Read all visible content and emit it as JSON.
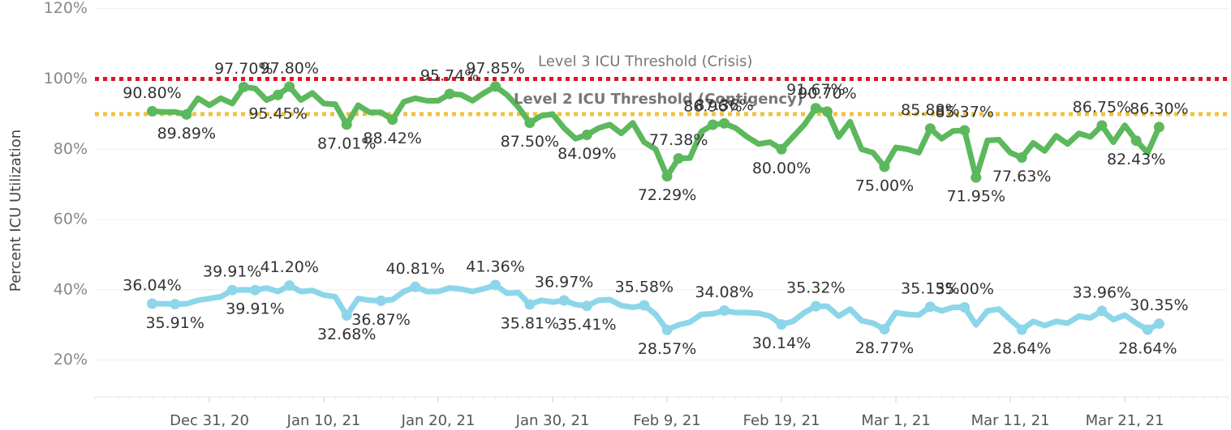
{
  "chart_data": {
    "type": "line",
    "ylabel": "Percent ICU Utilization",
    "x": [
      "2020-12-26",
      "2020-12-27",
      "2020-12-28",
      "2020-12-29",
      "2020-12-30",
      "2020-12-31",
      "2021-01-01",
      "2021-01-02",
      "2021-01-03",
      "2021-01-04",
      "2021-01-05",
      "2021-01-06",
      "2021-01-07",
      "2021-01-08",
      "2021-01-09",
      "2021-01-10",
      "2021-01-11",
      "2021-01-12",
      "2021-01-13",
      "2021-01-14",
      "2021-01-15",
      "2021-01-16",
      "2021-01-17",
      "2021-01-18",
      "2021-01-19",
      "2021-01-20",
      "2021-01-21",
      "2021-01-22",
      "2021-01-23",
      "2021-01-24",
      "2021-01-25",
      "2021-01-26",
      "2021-01-27",
      "2021-01-28",
      "2021-01-29",
      "2021-01-30",
      "2021-01-31",
      "2021-02-01",
      "2021-02-02",
      "2021-02-03",
      "2021-02-04",
      "2021-02-05",
      "2021-02-06",
      "2021-02-07",
      "2021-02-08",
      "2021-02-09",
      "2021-02-10",
      "2021-02-11",
      "2021-02-12",
      "2021-02-13",
      "2021-02-14",
      "2021-02-15",
      "2021-02-16",
      "2021-02-17",
      "2021-02-18",
      "2021-02-19",
      "2021-02-20",
      "2021-02-21",
      "2021-02-22",
      "2021-02-23",
      "2021-02-24",
      "2021-02-25",
      "2021-02-26",
      "2021-02-27",
      "2021-02-28",
      "2021-03-01",
      "2021-03-02",
      "2021-03-03",
      "2021-03-04",
      "2021-03-05",
      "2021-03-06",
      "2021-03-07",
      "2021-03-08",
      "2021-03-09",
      "2021-03-10",
      "2021-03-11",
      "2021-03-12",
      "2021-03-13",
      "2021-03-14",
      "2021-03-15",
      "2021-03-16",
      "2021-03-17",
      "2021-03-18",
      "2021-03-19",
      "2021-03-20",
      "2021-03-21",
      "2021-03-22",
      "2021-03-23",
      "2021-03-24"
    ],
    "series": [
      {
        "color": "#5cb85c",
        "values": [
          90.8,
          90.6,
          90.6,
          89.89,
          94.5,
          92.5,
          94.5,
          93,
          97.7,
          97.3,
          94,
          95.45,
          97.8,
          94,
          96,
          93,
          92.8,
          87.01,
          92.5,
          90.5,
          90.5,
          88.42,
          93.5,
          94.5,
          93.8,
          93.8,
          95.74,
          95.5,
          93.8,
          96,
          97.85,
          95.5,
          92,
          87.5,
          89.5,
          90,
          86,
          83,
          84.09,
          86,
          87,
          84.5,
          87.5,
          82,
          80,
          72.29,
          77.38,
          77.5,
          85,
          86.96,
          87.36,
          86,
          83.5,
          81.5,
          82,
          80.0,
          83.5,
          87,
          91.67,
          90.7,
          83.5,
          87.8,
          80,
          79,
          75.0,
          80.5,
          80,
          79,
          85.88,
          83,
          85.2,
          85.37,
          71.95,
          82.5,
          82.7,
          79,
          77.63,
          81.8,
          79.5,
          83.8,
          81.5,
          84.5,
          83.5,
          86.75,
          82,
          86.8,
          82.43,
          79,
          86.3
        ],
        "value_labels": [
          "90.80%",
          null,
          null,
          "89.89%",
          null,
          null,
          null,
          null,
          "97.70%",
          null,
          null,
          "95.45%",
          "97.80%",
          null,
          null,
          null,
          null,
          "87.01%",
          null,
          null,
          null,
          "88.42%",
          null,
          null,
          null,
          null,
          "95.74%",
          null,
          null,
          null,
          "97.85%",
          null,
          null,
          "87.50%",
          null,
          null,
          null,
          null,
          "84.09%",
          null,
          null,
          null,
          null,
          null,
          null,
          "72.29%",
          "77.38%",
          null,
          null,
          "86.96%",
          "87.36%",
          null,
          null,
          null,
          null,
          "80.00%",
          null,
          null,
          "91.67%",
          "90.70%",
          null,
          null,
          null,
          null,
          "75.00%",
          null,
          null,
          null,
          "85.88%",
          null,
          null,
          "85.37%",
          "71.95%",
          null,
          null,
          null,
          "77.63%",
          null,
          null,
          null,
          null,
          null,
          null,
          "86.75%",
          null,
          null,
          "82.43%",
          null,
          "86.30%"
        ]
      },
      {
        "color": "#8dd6ea",
        "values": [
          36.04,
          36.0,
          35.91,
          36.0,
          37,
          37.5,
          38,
          39.91,
          40.0,
          39.91,
          40.5,
          39.5,
          41.2,
          39.5,
          39.8,
          38.5,
          38,
          32.68,
          37.5,
          37,
          36.87,
          37.2,
          39.5,
          40.81,
          39.5,
          39.5,
          40.5,
          40.2,
          39.5,
          40.3,
          41.36,
          39,
          39.2,
          35.81,
          37,
          36.5,
          36.97,
          35.8,
          35.41,
          37,
          37.2,
          35.5,
          35.0,
          35.58,
          33,
          28.57,
          30,
          30.8,
          33,
          33.2,
          34.08,
          33.5,
          33.5,
          33.3,
          32.5,
          30.14,
          31,
          33.5,
          35.32,
          35.3,
          32.5,
          34.5,
          31.2,
          30.5,
          28.77,
          33.5,
          33,
          32.8,
          35.15,
          34,
          35,
          35.0,
          30,
          34,
          34.5,
          31.5,
          28.64,
          31,
          29.8,
          31,
          30.5,
          32.5,
          32,
          33.96,
          31.5,
          32.8,
          30.5,
          28.64,
          30.35
        ],
        "value_labels": [
          "36.04%",
          null,
          "35.91%",
          null,
          null,
          null,
          null,
          "39.91%",
          null,
          "39.91%",
          null,
          null,
          "41.20%",
          null,
          null,
          null,
          null,
          "32.68%",
          null,
          null,
          "36.87%",
          null,
          null,
          "40.81%",
          null,
          null,
          null,
          null,
          null,
          null,
          "41.36%",
          null,
          null,
          "35.81%",
          null,
          null,
          "36.97%",
          null,
          "35.41%",
          null,
          null,
          null,
          null,
          "35.58%",
          null,
          "28.57%",
          null,
          null,
          null,
          null,
          "34.08%",
          null,
          null,
          null,
          null,
          "30.14%",
          null,
          null,
          "35.32%",
          null,
          null,
          null,
          null,
          null,
          "28.77%",
          null,
          null,
          null,
          "35.15%",
          null,
          null,
          "35.00%",
          null,
          null,
          null,
          null,
          "28.64%",
          null,
          null,
          null,
          null,
          null,
          null,
          "33.96%",
          null,
          null,
          null,
          "28.64%",
          "30.35%"
        ]
      }
    ],
    "reference_lines": [
      {
        "value": 100,
        "label": "Level 3 ICU Threshold (Crisis)",
        "color": "#e0141e"
      },
      {
        "value": 90,
        "label": "Level 2 ICU Threshold (Contigency)",
        "color": "#f0c23c"
      }
    ],
    "xlim": [
      "2020-12-21",
      "2021-03-30"
    ],
    "xticks": [
      {
        "value": "2020-12-31",
        "label": "Dec 31, 20"
      },
      {
        "value": "2021-01-10",
        "label": "Jan 10, 21"
      },
      {
        "value": "2021-01-20",
        "label": "Jan 20, 21"
      },
      {
        "value": "2021-01-30",
        "label": "Jan 30, 21"
      },
      {
        "value": "2021-02-09",
        "label": "Feb 9, 21"
      },
      {
        "value": "2021-02-19",
        "label": "Feb 19, 21"
      },
      {
        "value": "2021-03-01",
        "label": "Mar 1, 21"
      },
      {
        "value": "2021-03-11",
        "label": "Mar 11, 21"
      },
      {
        "value": "2021-03-21",
        "label": "Mar 21, 21"
      }
    ],
    "ylim": [
      10,
      122
    ],
    "yticks": [
      {
        "value": 20,
        "label": "20%"
      },
      {
        "value": 40,
        "label": "40%"
      },
      {
        "value": 60,
        "label": "60%"
      },
      {
        "value": 80,
        "label": "80%"
      },
      {
        "value": 100,
        "label": "100%"
      },
      {
        "value": 120,
        "label": "120%"
      }
    ],
    "grid": true
  }
}
